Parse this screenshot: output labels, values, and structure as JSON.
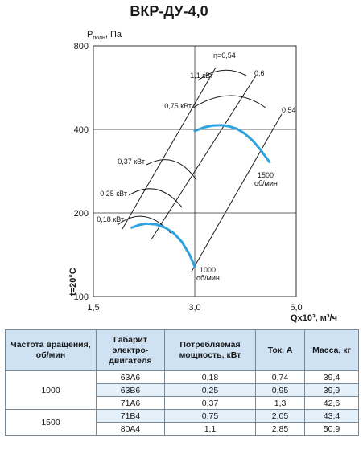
{
  "title": "ВКР-ДУ-4,0",
  "chart_data": {
    "type": "line",
    "title": "ВКР-ДУ-4,0",
    "ylabel_main": "P",
    "ylabel_sub": "полн",
    "ylabel_tail": ", Па",
    "xlabel": "Qx10³, м³/ч",
    "temperature_label": "t=20°C",
    "x_scale": "log",
    "y_scale": "log",
    "xlim": [
      1.5,
      6.0
    ],
    "ylim": [
      100,
      800
    ],
    "x_ticks": [
      "1,5",
      "3,0",
      "6,0"
    ],
    "x_tick_values": [
      1.5,
      3.0,
      6.0
    ],
    "y_ticks": [
      "100",
      "200",
      "400",
      "800"
    ],
    "y_tick_values": [
      100,
      200,
      400,
      800
    ],
    "grid": true,
    "series": [
      {
        "name": "1500 об/мин",
        "label_line1": "1500",
        "label_line2": "об/мин",
        "color": "#2ea3e0",
        "x": [
          3.0,
          3.2,
          3.4,
          3.6,
          3.8,
          4.0,
          4.2,
          4.45,
          4.7,
          5.0
        ],
        "y": [
          395,
          407,
          413,
          414,
          410,
          402,
          388,
          365,
          338,
          305
        ]
      },
      {
        "name": "1000 об/мин",
        "label_line1": "1000",
        "label_line2": "об/мин",
        "color": "#2ea3e0",
        "x": [
          1.95,
          2.05,
          2.15,
          2.3,
          2.45,
          2.6,
          2.75,
          2.9,
          3.0
        ],
        "y": [
          177,
          181,
          183,
          182,
          177,
          169,
          157,
          141,
          128
        ]
      }
    ],
    "power_curves": [
      {
        "label": "1,1 кВт",
        "kw": 1.1
      },
      {
        "label": "0,75 кВт",
        "kw": 0.75
      },
      {
        "label": "0,37 кВт",
        "kw": 0.37
      },
      {
        "label": "0,25 кВт",
        "kw": 0.25
      },
      {
        "label": "0,18 кВт",
        "kw": 0.18
      }
    ],
    "efficiency_lines": [
      {
        "label": "η=0,54",
        "value": 0.54
      },
      {
        "label": "0,6",
        "value": 0.6
      },
      {
        "label": "0,54",
        "value": 0.54
      }
    ]
  },
  "table": {
    "headers": [
      "Частота вращения, об/мин",
      "Габарит электро-двигателя",
      "Потребляемая мощность, кВт",
      "Ток, А",
      "Масса, кг"
    ],
    "groups": [
      {
        "speed": "1000",
        "rows": [
          [
            "63А6",
            "0,18",
            "0,74",
            "39,4"
          ],
          [
            "63В6",
            "0,25",
            "0,95",
            "39,9"
          ],
          [
            "71А6",
            "0,37",
            "1,3",
            "42,6"
          ]
        ]
      },
      {
        "speed": "1500",
        "rows": [
          [
            "71В4",
            "0,75",
            "2,05",
            "43,4"
          ],
          [
            "80А4",
            "1,1",
            "2,85",
            "50,9"
          ]
        ]
      }
    ]
  }
}
